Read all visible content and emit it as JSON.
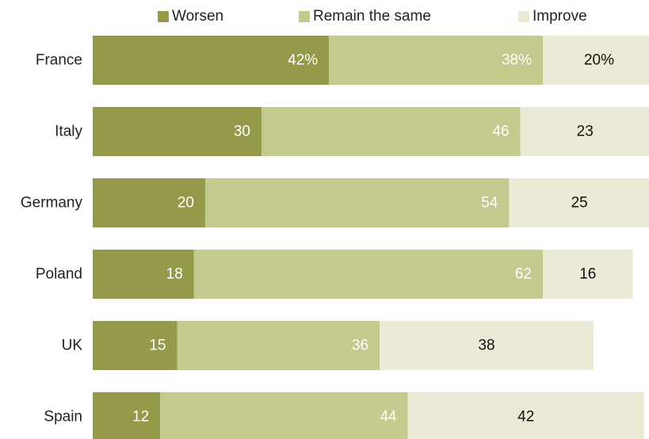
{
  "colors": {
    "worsen": "#959a4a",
    "same": "#c4c98d",
    "improve": "#eaead6",
    "label_dark": "#111111",
    "label_light": "#ffffff"
  },
  "chart_data": {
    "type": "bar",
    "orientation": "horizontal",
    "stacked": true,
    "categories": [
      "France",
      "Italy",
      "Germany",
      "Poland",
      "UK",
      "Spain"
    ],
    "series": [
      {
        "name": "Worsen",
        "values": [
          42,
          30,
          20,
          18,
          15,
          12
        ],
        "labels": [
          "42%",
          "30",
          "20",
          "18",
          "15",
          "12"
        ]
      },
      {
        "name": "Remain the same",
        "values": [
          38,
          46,
          54,
          62,
          36,
          44
        ],
        "labels": [
          "38%",
          "46",
          "54",
          "62",
          "36",
          "44"
        ]
      },
      {
        "name": "Improve",
        "values": [
          20,
          23,
          25,
          16,
          38,
          42
        ],
        "labels": [
          "20%",
          "23",
          "25",
          "16",
          "38",
          "42"
        ]
      }
    ],
    "xlim": [
      0,
      100
    ],
    "legend_position": "top",
    "grid": false
  }
}
